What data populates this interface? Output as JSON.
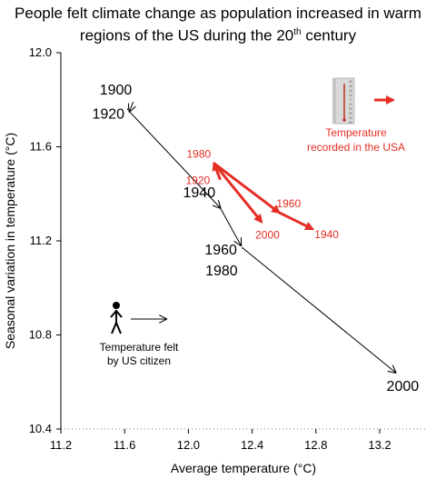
{
  "title_parts": [
    "People felt climate change as population increased in warm regions of the US during the 20",
    "th",
    " century"
  ],
  "chart_data": {
    "type": "line",
    "xlabel": "Average temperature (°C)",
    "ylabel": "Seasonal variation in temperature (°C)",
    "xlim": [
      11.2,
      13.55
    ],
    "ylim": [
      10.4,
      12.0
    ],
    "xticks": [
      11.2,
      11.6,
      12.0,
      12.4,
      12.8,
      13.2
    ],
    "yticks": [
      10.4,
      10.8,
      11.2,
      11.6,
      12.0
    ],
    "grid": false,
    "series": [
      {
        "name": "Temperature felt by US citizen",
        "color": "#000000",
        "points": [
          {
            "year": "1900",
            "x": 11.62,
            "y": 11.76
          },
          {
            "year": "1920",
            "x": 11.63,
            "y": 11.75
          },
          {
            "year": "1940",
            "x": 12.2,
            "y": 11.34
          },
          {
            "year": "1960",
            "x": 12.33,
            "y": 11.18
          },
          {
            "year": "1980",
            "x": 12.34,
            "y": 11.17
          },
          {
            "year": "2000",
            "x": 13.3,
            "y": 10.64
          }
        ]
      },
      {
        "name": "Temperature recorded in the USA",
        "color": "#e52e24",
        "points": [
          {
            "year": "1920",
            "x": 12.2,
            "y": 11.46
          },
          {
            "year": "1980",
            "x": 12.16,
            "y": 11.53
          },
          {
            "year": "2000",
            "x": 12.46,
            "y": 11.28
          },
          {
            "year": "1960",
            "x": 12.57,
            "y": 11.32
          },
          {
            "year": "1940",
            "x": 12.78,
            "y": 11.25
          }
        ]
      }
    ]
  },
  "legend": {
    "felt_lines": [
      "Temperature felt",
      "by US citizen"
    ],
    "recorded_lines": [
      "Temperature",
      "recorded in the USA"
    ],
    "thermometer_scale": [
      "40",
      "30",
      "20",
      "10",
      "0",
      "10",
      "20",
      "30",
      "40",
      "50"
    ]
  },
  "icons": [
    "person-icon",
    "thermometer-icon"
  ]
}
